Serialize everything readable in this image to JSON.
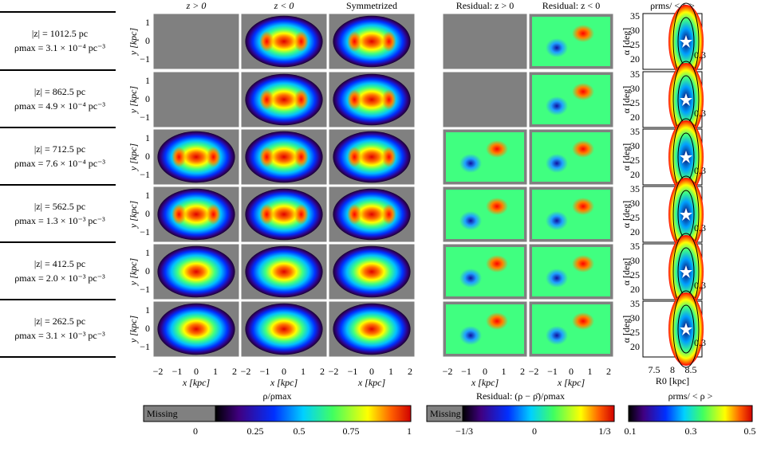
{
  "columns": [
    "z > 0",
    "z < 0",
    "Symmetrized",
    "Residual: z > 0",
    "Residual: z < 0",
    "ρrms/ < ρ >"
  ],
  "rows": [
    {
      "z": "|z| = 1012.5 pc",
      "rho_max": "ρmax = 3.1 × 10⁻⁴ pc⁻³"
    },
    {
      "z": "|z| = 862.5 pc",
      "rho_max": "ρmax = 4.9 × 10⁻⁴ pc⁻³"
    },
    {
      "z": "|z| = 712.5 pc",
      "rho_max": "ρmax = 7.6 × 10⁻⁴ pc⁻³"
    },
    {
      "z": "|z| = 562.5 pc",
      "rho_max": "ρmax = 1.3 × 10⁻³ pc⁻³"
    },
    {
      "z": "|z| = 412.5 pc",
      "rho_max": "ρmax = 2.0 × 10⁻³ pc⁻³"
    },
    {
      "z": "|z| = 262.5 pc",
      "rho_max": "ρmax = 3.1 × 10⁻³ pc⁻³"
    }
  ],
  "axes": {
    "y_label": "y [kpc]",
    "y_ticks": [
      "1",
      "0",
      "−1"
    ],
    "x_label": "x [kpc]",
    "x_ticks": [
      "−2",
      "−1",
      "0",
      "1",
      "2"
    ],
    "alpha_label": "α [deg]",
    "alpha_ticks": [
      "35",
      "30",
      "25",
      "20"
    ],
    "r0_label": "R0 [kpc]",
    "r0_ticks": [
      "7.5",
      "8",
      "8.5"
    ],
    "contour_label": "0.3"
  },
  "colorbars": [
    {
      "label": "ρ/ρmax",
      "missing": "Missing",
      "ticks": [
        "0",
        "0.25",
        "0.5",
        "0.75",
        "1"
      ]
    },
    {
      "label": "Residual: (ρ − ρ̄)/ρmax",
      "missing": "Missing",
      "ticks": [
        "−1/3",
        "0",
        "1/3"
      ]
    },
    {
      "label": "ρrms/ < ρ >",
      "ticks": [
        "0.1",
        "0.3",
        "0.5"
      ]
    }
  ]
}
